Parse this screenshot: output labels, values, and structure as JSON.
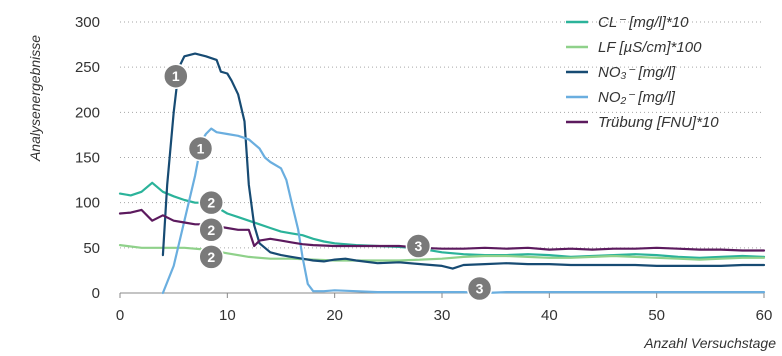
{
  "chart_data": {
    "type": "line",
    "ylabel": "Analysenergebnisse",
    "xlabel": "Anzahl Versuchstage",
    "xlim": [
      0,
      60
    ],
    "ylim": [
      0,
      300
    ],
    "x_ticks": [
      0,
      10,
      20,
      30,
      40,
      50,
      60
    ],
    "y_ticks": [
      0,
      50,
      100,
      150,
      200,
      250,
      300
    ],
    "grid": "horizontal dotted",
    "legend_position": "top-right",
    "series": [
      {
        "name": "CL⁻ [mg/l]*10",
        "color": "#2bb39a",
        "points": [
          [
            0,
            110
          ],
          [
            1,
            108
          ],
          [
            2,
            112
          ],
          [
            3,
            122
          ],
          [
            4,
            112
          ],
          [
            5,
            107
          ],
          [
            6,
            103
          ],
          [
            7,
            100
          ],
          [
            8,
            100
          ],
          [
            9,
            95
          ],
          [
            10,
            88
          ],
          [
            11,
            84
          ],
          [
            12,
            80
          ],
          [
            13,
            76
          ],
          [
            14,
            72
          ],
          [
            15,
            68
          ],
          [
            16,
            66
          ],
          [
            17,
            64
          ],
          [
            18,
            60
          ],
          [
            19,
            57
          ],
          [
            20,
            55
          ],
          [
            22,
            53
          ],
          [
            24,
            52
          ],
          [
            26,
            51
          ],
          [
            28,
            49
          ],
          [
            30,
            45
          ],
          [
            32,
            43
          ],
          [
            34,
            42
          ],
          [
            36,
            42
          ],
          [
            38,
            43
          ],
          [
            40,
            42
          ],
          [
            42,
            40
          ],
          [
            44,
            41
          ],
          [
            46,
            42
          ],
          [
            48,
            43
          ],
          [
            50,
            42
          ],
          [
            52,
            40
          ],
          [
            54,
            39
          ],
          [
            56,
            40
          ],
          [
            58,
            41
          ],
          [
            60,
            40
          ]
        ]
      },
      {
        "name": "LF [µS/cm]*100",
        "color": "#8fd18a",
        "points": [
          [
            0,
            53
          ],
          [
            2,
            50
          ],
          [
            4,
            50
          ],
          [
            6,
            50
          ],
          [
            8,
            48
          ],
          [
            10,
            44
          ],
          [
            12,
            40
          ],
          [
            14,
            38
          ],
          [
            16,
            38
          ],
          [
            18,
            37
          ],
          [
            20,
            36
          ],
          [
            22,
            36
          ],
          [
            24,
            36
          ],
          [
            26,
            36
          ],
          [
            28,
            37
          ],
          [
            30,
            38
          ],
          [
            32,
            40
          ],
          [
            34,
            41
          ],
          [
            36,
            41
          ],
          [
            38,
            40
          ],
          [
            40,
            39
          ],
          [
            42,
            39
          ],
          [
            44,
            40
          ],
          [
            46,
            41
          ],
          [
            48,
            40
          ],
          [
            50,
            39
          ],
          [
            52,
            38
          ],
          [
            54,
            37
          ],
          [
            56,
            38
          ],
          [
            58,
            39
          ],
          [
            60,
            39
          ]
        ]
      },
      {
        "name": "NO₃⁻ [mg/l]",
        "color": "#174b73",
        "points": [
          [
            4,
            42
          ],
          [
            4.4,
            120
          ],
          [
            5,
            200
          ],
          [
            5.5,
            250
          ],
          [
            6,
            262
          ],
          [
            7,
            265
          ],
          [
            8,
            262
          ],
          [
            9,
            258
          ],
          [
            9.4,
            245
          ],
          [
            10,
            243
          ],
          [
            10.4,
            235
          ],
          [
            11,
            220
          ],
          [
            11.6,
            190
          ],
          [
            12,
            120
          ],
          [
            12.5,
            75
          ],
          [
            13,
            55
          ],
          [
            14,
            45
          ],
          [
            15,
            42
          ],
          [
            16,
            40
          ],
          [
            17,
            38
          ],
          [
            18,
            36
          ],
          [
            19,
            35
          ],
          [
            20,
            37
          ],
          [
            21,
            38
          ],
          [
            22,
            36
          ],
          [
            24,
            33
          ],
          [
            26,
            34
          ],
          [
            28,
            32
          ],
          [
            30,
            30
          ],
          [
            31,
            27
          ],
          [
            32,
            31
          ],
          [
            34,
            32
          ],
          [
            36,
            33
          ],
          [
            38,
            32
          ],
          [
            40,
            32
          ],
          [
            42,
            31
          ],
          [
            44,
            31
          ],
          [
            46,
            31
          ],
          [
            48,
            31
          ],
          [
            50,
            30
          ],
          [
            52,
            30
          ],
          [
            54,
            30
          ],
          [
            56,
            30
          ],
          [
            58,
            31
          ],
          [
            60,
            31
          ]
        ]
      },
      {
        "name": "NO₂⁻ [mg/l]",
        "color": "#6aaedf",
        "points": [
          [
            4,
            0
          ],
          [
            5,
            30
          ],
          [
            6,
            80
          ],
          [
            7,
            130
          ],
          [
            7.6,
            168
          ],
          [
            8,
            176
          ],
          [
            8.5,
            182
          ],
          [
            9,
            178
          ],
          [
            10,
            176
          ],
          [
            11,
            174
          ],
          [
            12,
            170
          ],
          [
            13,
            160
          ],
          [
            13.5,
            150
          ],
          [
            14,
            145
          ],
          [
            15,
            138
          ],
          [
            15.5,
            125
          ],
          [
            16,
            100
          ],
          [
            16.6,
            70
          ],
          [
            17,
            40
          ],
          [
            17.5,
            10
          ],
          [
            18,
            2
          ],
          [
            19,
            2
          ],
          [
            20,
            3
          ],
          [
            22,
            2
          ],
          [
            24,
            1
          ],
          [
            26,
            1
          ],
          [
            28,
            1
          ],
          [
            30,
            1
          ],
          [
            32,
            1
          ],
          [
            34,
            0
          ],
          [
            36,
            1
          ],
          [
            40,
            1
          ],
          [
            44,
            1
          ],
          [
            48,
            1
          ],
          [
            52,
            1
          ],
          [
            56,
            1
          ],
          [
            60,
            1
          ]
        ]
      },
      {
        "name": "Trübung [FNU]*10",
        "color": "#5c1a5e",
        "points": [
          [
            0,
            88
          ],
          [
            1,
            89
          ],
          [
            2,
            92
          ],
          [
            3,
            80
          ],
          [
            4,
            86
          ],
          [
            5,
            80
          ],
          [
            6,
            78
          ],
          [
            7,
            76
          ],
          [
            8,
            76
          ],
          [
            9,
            74
          ],
          [
            10,
            72
          ],
          [
            11,
            70
          ],
          [
            12,
            70
          ],
          [
            12.5,
            52
          ],
          [
            13,
            58
          ],
          [
            14,
            60
          ],
          [
            15,
            58
          ],
          [
            16,
            56
          ],
          [
            17,
            54
          ],
          [
            18,
            53
          ],
          [
            20,
            52
          ],
          [
            22,
            52
          ],
          [
            24,
            52
          ],
          [
            26,
            52
          ],
          [
            28,
            50
          ],
          [
            30,
            49
          ],
          [
            32,
            49
          ],
          [
            34,
            50
          ],
          [
            36,
            49
          ],
          [
            38,
            50
          ],
          [
            40,
            48
          ],
          [
            42,
            49
          ],
          [
            44,
            48
          ],
          [
            46,
            49
          ],
          [
            48,
            49
          ],
          [
            50,
            50
          ],
          [
            52,
            49
          ],
          [
            54,
            48
          ],
          [
            56,
            48
          ],
          [
            58,
            47
          ],
          [
            60,
            47
          ]
        ]
      }
    ],
    "annotations": [
      {
        "label": "1",
        "x": 5.2,
        "y": 240
      },
      {
        "label": "1",
        "x": 7.5,
        "y": 160
      },
      {
        "label": "2",
        "x": 8.5,
        "y": 100
      },
      {
        "label": "2",
        "x": 8.5,
        "y": 70
      },
      {
        "label": "2",
        "x": 8.5,
        "y": 40
      },
      {
        "label": "3",
        "x": 27.8,
        "y": 52
      },
      {
        "label": "3",
        "x": 33.5,
        "y": 5
      }
    ]
  }
}
